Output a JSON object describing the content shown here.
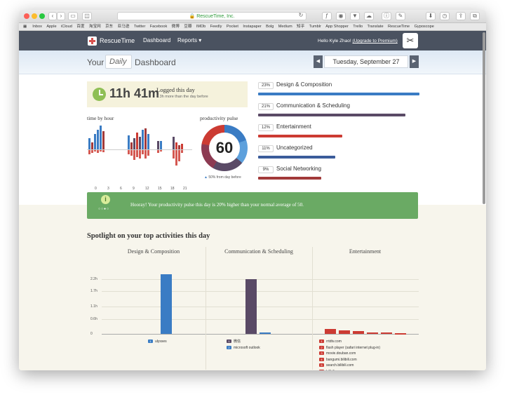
{
  "browser": {
    "url": "RescueTime, Inc.",
    "bookmarks": [
      "Inbox",
      "Apple",
      "iCloud",
      "百度",
      "淘宝网",
      "京东",
      "亚马逊",
      "Twitter",
      "Facebook",
      "微博",
      "豆瓣",
      "IMDb",
      "Feedly",
      "Pocket",
      "Instapaper",
      "Bolg",
      "Medium",
      "知乎",
      "Tumblr",
      "App Shopper",
      "Trello",
      "Translate",
      "RescueTime",
      "Gyposcope"
    ]
  },
  "appnav": {
    "brand": "RescueTime",
    "dashboard": "Dashboard",
    "reports": "Reports ▾",
    "greeting": "Hello Kyle Zhao! ",
    "upgrade": "(Upgrade to Premium)"
  },
  "header": {
    "your": "Your",
    "period": "Daily",
    "dashboard": "Dashboard",
    "date": "Tuesday, September 27",
    "prev": "◀",
    "next": "▶"
  },
  "summary": {
    "total": "11h 41m",
    "logged": "Logged this day",
    "sub": "4.3h more than the day before"
  },
  "hourly": {
    "title": "time by hour",
    "ticks": [
      "0",
      "3",
      "6",
      "9",
      "12",
      "15",
      "18",
      "21"
    ]
  },
  "pulse": {
    "title": "productivity pulse",
    "value": "60",
    "note": "50% from day before"
  },
  "categories": [
    {
      "pct": "23%",
      "name": "Design & Composition",
      "color": "#3a7cc4",
      "fraction": 0.23
    },
    {
      "pct": "21%",
      "name": "Communication & Scheduling",
      "color": "#5a4a66",
      "fraction": 0.21
    },
    {
      "pct": "12%",
      "name": "Entertainment",
      "color": "#cc3b33",
      "fraction": 0.12
    },
    {
      "pct": "11%",
      "name": "Uncategorized",
      "color": "#3b5c9a",
      "fraction": 0.11
    },
    {
      "pct": "9%",
      "name": "Social Networking",
      "color": "#a23a3a",
      "fraction": 0.09
    }
  ],
  "banner": {
    "message": "Hooray! Your productivity pulse this day is 20% higher than your normal average of 50."
  },
  "spotlight": {
    "title": "Spotlight on your top activities this day",
    "yticks": [
      "2.2h",
      "1.7h",
      "1.1h",
      "0.6h",
      "0"
    ]
  },
  "chart_data": [
    {
      "type": "bar",
      "title": "Design & Composition",
      "ylim": [
        0,
        2.5
      ],
      "series": [
        {
          "name": "ulysses",
          "color": "#3a7cc4",
          "values": [
            2.4
          ]
        }
      ],
      "legend": [
        {
          "num": "1",
          "name": "ulysses",
          "color": "#3a7cc4"
        }
      ]
    },
    {
      "type": "bar",
      "title": "Communication & Scheduling",
      "ylim": [
        0,
        2.5
      ],
      "series": [
        {
          "name": "微信",
          "color": "#5a4a66",
          "values": [
            2.2
          ]
        },
        {
          "name": "microsoft outlook",
          "color": "#3a7cc4",
          "values": [
            0.05
          ]
        }
      ],
      "legend": [
        {
          "num": "1",
          "name": "微信",
          "color": "#5a4a66"
        },
        {
          "num": "2",
          "name": "microsoft outlook",
          "color": "#3a7cc4"
        }
      ]
    },
    {
      "type": "bar",
      "title": "Entertainment",
      "ylim": [
        0,
        2.5
      ],
      "series": [
        {
          "name": "rrtdtv.com",
          "color": "#cc3b33",
          "values": [
            0.2
          ]
        },
        {
          "name": "flash player (safari internet plug-in)",
          "color": "#cc3b33",
          "values": [
            0.13
          ]
        },
        {
          "name": "movie.douban.com",
          "color": "#cc3b33",
          "values": [
            0.1
          ]
        },
        {
          "name": "bangumi.bilibili.com",
          "color": "#cc3b33",
          "values": [
            0.07
          ]
        },
        {
          "name": "search.bilibili.com",
          "color": "#cc3b33",
          "values": [
            0.05
          ]
        },
        {
          "name": "bilibili.com",
          "color": "#cc3b33",
          "values": [
            0.04
          ]
        }
      ],
      "legend": [
        {
          "num": "1",
          "name": "rrtdtv.com",
          "color": "#cc3b33"
        },
        {
          "num": "2",
          "name": "flash player (safari internet plug-in)",
          "color": "#cc3b33"
        },
        {
          "num": "3",
          "name": "movie.douban.com",
          "color": "#cc3b33"
        },
        {
          "num": "4",
          "name": "bangumi.bilibili.com",
          "color": "#cc3b33"
        },
        {
          "num": "5",
          "name": "search.bilibili.com",
          "color": "#cc3b33"
        },
        {
          "num": "6",
          "name": "bilibili.com",
          "color": "#cc3b33"
        }
      ]
    }
  ]
}
